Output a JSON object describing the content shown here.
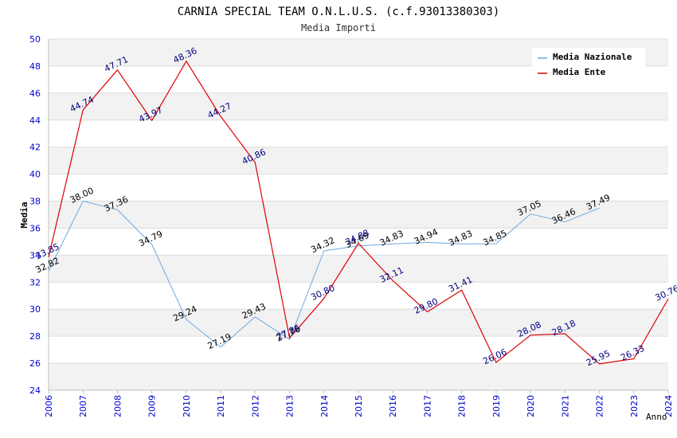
{
  "chart_data": {
    "type": "line",
    "title": "CARNIA SPECIAL TEAM O.N.L.U.S. (c.f.93013380303)",
    "subtitle": "Media Importi",
    "xlabel": "Anno",
    "ylabel": "Media",
    "ylim": [
      24,
      50
    ],
    "yticks": [
      "24",
      "26",
      "28",
      "30",
      "32",
      "34",
      "36",
      "38",
      "40",
      "42",
      "44",
      "46",
      "48",
      "50"
    ],
    "x": [
      "2006",
      "2007",
      "2008",
      "2009",
      "2010",
      "2011",
      "2012",
      "2013",
      "2014",
      "2015",
      "2016",
      "2017",
      "2018",
      "2019",
      "2020",
      "2021",
      "2022",
      "2023",
      "2024"
    ],
    "grid": true,
    "legend_position": "top-right",
    "series": [
      {
        "name": "Media Nazionale",
        "color": "#6fa8dc",
        "label_color": "#000000",
        "values": [
          32.82,
          38.0,
          37.36,
          34.79,
          29.24,
          27.19,
          29.43,
          27.76,
          34.32,
          34.69,
          34.83,
          34.94,
          34.83,
          34.85,
          37.05,
          36.46,
          37.49,
          null,
          null
        ],
        "labels": [
          "32.82",
          "38.00",
          "37.36",
          "34.79",
          "29.24",
          "27.19",
          "29.43",
          "27.76",
          "34.32",
          "34.69",
          "34.83",
          "34.94",
          "34.83",
          "34.85",
          "37.05",
          "36.46",
          "37.49",
          "",
          ""
        ]
      },
      {
        "name": "Media Ente",
        "color": "#dd0000",
        "label_color": "#000080",
        "values": [
          33.85,
          44.74,
          47.71,
          43.97,
          48.36,
          44.27,
          40.86,
          27.86,
          30.8,
          34.88,
          32.11,
          29.8,
          31.41,
          26.06,
          28.08,
          28.18,
          25.95,
          26.33,
          30.76
        ],
        "labels": [
          "33.85",
          "44.74",
          "47.71",
          "43.97",
          "48.36",
          "44.27",
          "40.86",
          "27.86",
          "30.80",
          "34.88",
          "32.11",
          "29.80",
          "31.41",
          "26.06",
          "28.08",
          "28.18",
          "25.95",
          "26.33",
          "30.76"
        ]
      }
    ]
  }
}
